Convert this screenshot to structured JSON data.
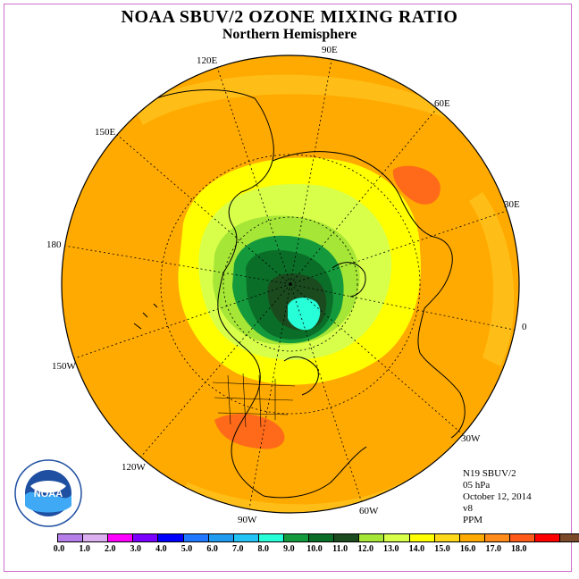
{
  "title": "NOAA SBUV/2 OZONE MIXING RATIO",
  "subtitle": "Northern Hemisphere",
  "longitude_labels": [
    "90E",
    "60E",
    "30E",
    "0",
    "30W",
    "60W",
    "90W",
    "120W",
    "150W",
    "180",
    "150E",
    "120E"
  ],
  "info": {
    "satellite": "N19 SBUV/2",
    "level": "05 hPa",
    "date": "October 12, 2014",
    "version": "v8",
    "units": "PPM"
  },
  "logo_text": "NOAA",
  "colorbar": {
    "colors": [
      "#b57ee8",
      "#dcb0f0",
      "#ff00ff",
      "#7a00ff",
      "#0000ff",
      "#1f78ff",
      "#1f9cf0",
      "#23c3f5",
      "#26ffd8",
      "#149a3c",
      "#0a6e28",
      "#1a4a1e",
      "#a6e636",
      "#d8ff4a",
      "#ffff00",
      "#ffd81a",
      "#ffaa00",
      "#ff8c1a",
      "#ff5a1a",
      "#ff0000",
      "#7a4a2a"
    ],
    "ticks": [
      "0.0",
      "1.0",
      "2.0",
      "3.0",
      "4.0",
      "5.0",
      "6.0",
      "7.0",
      "8.0",
      "9.0",
      "10.0",
      "11.0",
      "12.0",
      "13.0",
      "14.0",
      "15.0",
      "16.0",
      "17.0",
      "18.0"
    ]
  },
  "colors": {
    "background_field": "#ffaa00",
    "outer_ring": "#ffc01a",
    "yellow_band": "#ffff00",
    "light_green": "#d8ff4a",
    "green": "#a6e636",
    "medium_green": "#149a3c",
    "dark_green": "#0a6e28",
    "darkest_green": "#1a4a1e",
    "core": "#26ffd8",
    "hotspot": "#ff6a1a"
  }
}
